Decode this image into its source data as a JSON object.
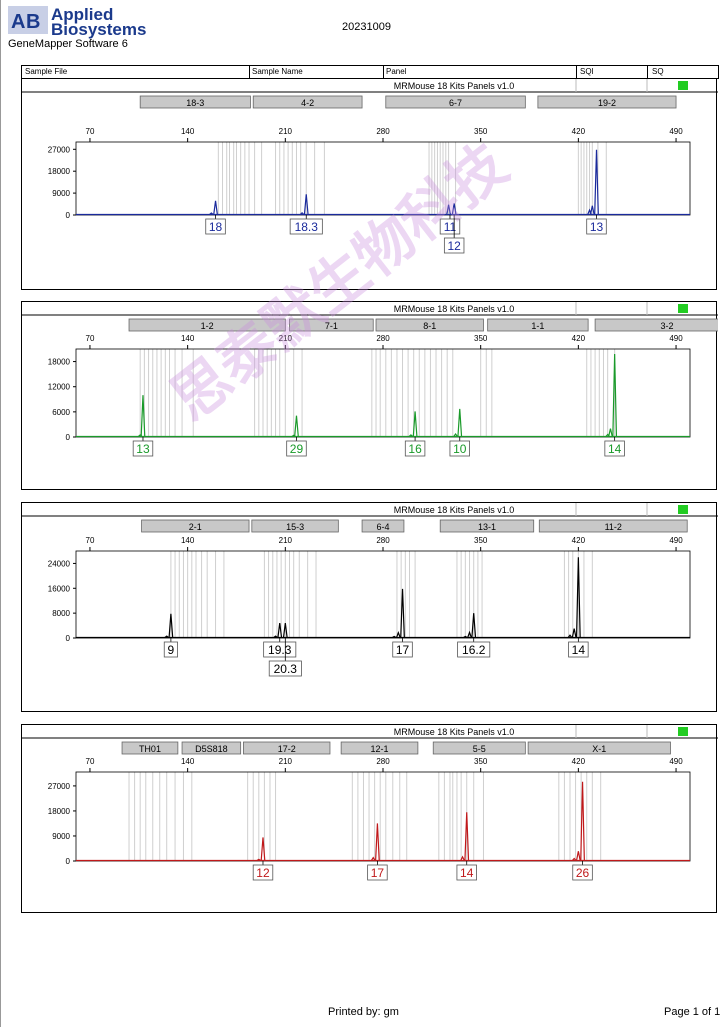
{
  "header": {
    "brand_line1": "Applied",
    "brand_line2": "Biosystems",
    "software": "GeneMapper Software 6",
    "date": "20231009"
  },
  "columns": {
    "sample_file": "Sample File",
    "sample_name": "Sample Name",
    "panel": "Panel",
    "sqi": "SQI",
    "sq": "SQ"
  },
  "footer": {
    "printed_by": "Printed by: gm",
    "page": "Page 1 of 1"
  },
  "watermark": "思泰默生物科技",
  "colors": {
    "blue": "#1a2a9c",
    "green": "#1a9a2a",
    "black": "#000000",
    "red": "#c0181a",
    "status": "#22cc22"
  },
  "chart_data": [
    {
      "type": "line",
      "panel_title": "MRMouse 18 Kits  Panels  v1.0",
      "color": "#1a2a9c",
      "x_ticks": [
        70,
        140,
        210,
        280,
        350,
        420,
        490
      ],
      "y_ticks": [
        0,
        9000,
        18000,
        27000
      ],
      "xlim": [
        60,
        500
      ],
      "ylim": [
        0,
        30000
      ],
      "markers": [
        {
          "name": "18-3",
          "from": 106,
          "to": 185
        },
        {
          "name": "4-2",
          "from": 187,
          "to": 265
        },
        {
          "name": "6-7",
          "from": 282,
          "to": 382
        },
        {
          "name": "19-2",
          "from": 391,
          "to": 490
        }
      ],
      "bins": [
        [
          162,
          165,
          168,
          170,
          173,
          175,
          178,
          181,
          184,
          188,
          193
        ],
        [
          203,
          206,
          209,
          212,
          215,
          218,
          221,
          225,
          231,
          238
        ],
        [
          313,
          315,
          317,
          319,
          321,
          323,
          325,
          327,
          332
        ],
        [
          420,
          422,
          424,
          426,
          428,
          430,
          434,
          440
        ]
      ],
      "peaks": [
        {
          "x": 160,
          "h": 5800
        },
        {
          "x": 157,
          "h": 800
        },
        {
          "x": 225,
          "h": 8500
        },
        {
          "x": 222,
          "h": 900
        },
        {
          "x": 327,
          "h": 4200
        },
        {
          "x": 331,
          "h": 4800
        },
        {
          "x": 433,
          "h": 26800
        },
        {
          "x": 430,
          "h": 3800
        },
        {
          "x": 428,
          "h": 2000
        }
      ],
      "alleles": [
        {
          "x": 160,
          "label": "18",
          "row": 0
        },
        {
          "x": 225,
          "label": "18.3",
          "row": 0
        },
        {
          "x": 328,
          "label": "11",
          "row": 0
        },
        {
          "x": 331,
          "label": "12",
          "row": 1
        },
        {
          "x": 433,
          "label": "13",
          "row": 0
        }
      ]
    },
    {
      "type": "line",
      "panel_title": "MRMouse 18 Kits  Panels  v1.0",
      "color": "#1a9a2a",
      "x_ticks": [
        70,
        140,
        210,
        280,
        350,
        420,
        490
      ],
      "y_ticks": [
        0,
        6000,
        12000,
        18000
      ],
      "xlim": [
        60,
        500
      ],
      "ylim": [
        0,
        21000
      ],
      "markers": [
        {
          "name": "1-2",
          "from": 98,
          "to": 210
        },
        {
          "name": "7-1",
          "from": 213,
          "to": 273
        },
        {
          "name": "8-1",
          "from": 275,
          "to": 352
        },
        {
          "name": "1-1",
          "from": 355,
          "to": 427
        },
        {
          "name": "3-2",
          "from": 432,
          "to": 535
        }
      ],
      "bins": [
        [
          106,
          109,
          112,
          115,
          118,
          121,
          124,
          127,
          131,
          136,
          144
        ],
        [
          188,
          191,
          194,
          197,
          200,
          203,
          206,
          210,
          216,
          222
        ],
        [
          272,
          275,
          278,
          282,
          286,
          290,
          294,
          298,
          302,
          306,
          310,
          314,
          318,
          322,
          326,
          330
        ],
        [
          350,
          354,
          358
        ],
        [
          426,
          429,
          432,
          435,
          438,
          441,
          446
        ]
      ],
      "peaks": [
        {
          "x": 108,
          "h": 10000
        },
        {
          "x": 106,
          "h": 500
        },
        {
          "x": 218,
          "h": 5100
        },
        {
          "x": 216,
          "h": 400
        },
        {
          "x": 303,
          "h": 6100
        },
        {
          "x": 300,
          "h": 500
        },
        {
          "x": 335,
          "h": 6700
        },
        {
          "x": 332,
          "h": 700
        },
        {
          "x": 446,
          "h": 19800
        },
        {
          "x": 443,
          "h": 2000
        },
        {
          "x": 441,
          "h": 600
        }
      ],
      "alleles": [
        {
          "x": 108,
          "label": "13",
          "row": 0
        },
        {
          "x": 218,
          "label": "29",
          "row": 0
        },
        {
          "x": 303,
          "label": "16",
          "row": 0
        },
        {
          "x": 335,
          "label": "10",
          "row": 0
        },
        {
          "x": 446,
          "label": "14",
          "row": 0
        }
      ]
    },
    {
      "type": "line",
      "panel_title": "MRMouse 18 Kits  Panels  v1.0",
      "color": "#000000",
      "x_ticks": [
        70,
        140,
        210,
        280,
        350,
        420,
        490
      ],
      "y_ticks": [
        0,
        8000,
        16000,
        24000
      ],
      "xlim": [
        60,
        500
      ],
      "ylim": [
        0,
        28000
      ],
      "markers": [
        {
          "name": "2-1",
          "from": 107,
          "to": 184
        },
        {
          "name": "15-3",
          "from": 186,
          "to": 248
        },
        {
          "name": "6-4",
          "from": 265,
          "to": 295
        },
        {
          "name": "13-1",
          "from": 321,
          "to": 388
        },
        {
          "name": "11-2",
          "from": 392,
          "to": 498
        }
      ],
      "bins": [
        [
          128,
          131,
          134,
          137,
          140,
          143,
          146,
          150,
          154,
          160,
          166
        ],
        [
          195,
          198,
          201,
          204,
          207,
          210,
          213,
          216,
          220,
          226,
          232
        ],
        [
          290,
          293,
          296,
          299,
          303
        ],
        [
          333,
          336,
          339,
          342,
          345,
          348,
          351
        ],
        [
          410,
          413,
          416,
          420,
          424,
          430
        ]
      ],
      "peaks": [
        {
          "x": 128,
          "h": 7800
        },
        {
          "x": 125,
          "h": 600
        },
        {
          "x": 206,
          "h": 4800
        },
        {
          "x": 210,
          "h": 4800
        },
        {
          "x": 203,
          "h": 600
        },
        {
          "x": 294,
          "h": 15800
        },
        {
          "x": 291,
          "h": 1700
        },
        {
          "x": 288,
          "h": 500
        },
        {
          "x": 345,
          "h": 8000
        },
        {
          "x": 342,
          "h": 1800
        },
        {
          "x": 339,
          "h": 500
        },
        {
          "x": 420,
          "h": 26000
        },
        {
          "x": 417,
          "h": 3000
        },
        {
          "x": 414,
          "h": 900
        }
      ],
      "alleles": [
        {
          "x": 128,
          "label": "9",
          "row": 0
        },
        {
          "x": 206,
          "label": "19.3",
          "row": 0
        },
        {
          "x": 210,
          "label": "20.3",
          "row": 1
        },
        {
          "x": 294,
          "label": "17",
          "row": 0
        },
        {
          "x": 345,
          "label": "16.2",
          "row": 0
        },
        {
          "x": 420,
          "label": "14",
          "row": 0
        }
      ]
    },
    {
      "type": "line",
      "panel_title": "MRMouse 18 Kits  Panels  v1.0",
      "color": "#c0181a",
      "x_ticks": [
        70,
        140,
        210,
        280,
        350,
        420,
        490
      ],
      "y_ticks": [
        0,
        9000,
        18000,
        27000
      ],
      "xlim": [
        60,
        500
      ],
      "ylim": [
        0,
        32000
      ],
      "markers": [
        {
          "name": "TH01",
          "from": 93,
          "to": 133
        },
        {
          "name": "D5S818",
          "from": 136,
          "to": 178
        },
        {
          "name": "17-2",
          "from": 180,
          "to": 242
        },
        {
          "name": "12-1",
          "from": 250,
          "to": 305
        },
        {
          "name": "5-5",
          "from": 316,
          "to": 382
        },
        {
          "name": "X-1",
          "from": 384,
          "to": 486
        }
      ],
      "bins": [
        [
          98,
          102,
          106,
          110,
          115,
          120,
          125,
          131,
          137,
          143
        ],
        [
          183,
          187,
          191,
          195,
          199,
          203
        ],
        [
          258,
          262,
          266,
          270,
          274,
          278,
          282,
          287,
          292,
          297
        ],
        [
          320,
          324,
          328,
          330,
          333,
          336,
          340,
          345,
          352
        ],
        [
          406,
          410,
          414,
          418,
          422,
          426,
          430,
          436
        ]
      ],
      "peaks": [
        {
          "x": 194,
          "h": 8500
        },
        {
          "x": 191,
          "h": 600
        },
        {
          "x": 276,
          "h": 13500
        },
        {
          "x": 273,
          "h": 1200
        },
        {
          "x": 340,
          "h": 17500
        },
        {
          "x": 337,
          "h": 1500
        },
        {
          "x": 423,
          "h": 28500
        },
        {
          "x": 420,
          "h": 3500
        },
        {
          "x": 417,
          "h": 900
        }
      ],
      "alleles": [
        {
          "x": 194,
          "label": "12",
          "row": 0
        },
        {
          "x": 276,
          "label": "17",
          "row": 0
        },
        {
          "x": 340,
          "label": "14",
          "row": 0
        },
        {
          "x": 423,
          "label": "26",
          "row": 0
        }
      ]
    }
  ]
}
